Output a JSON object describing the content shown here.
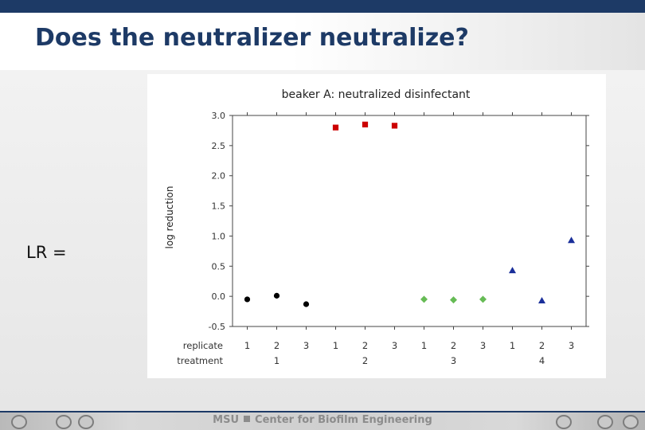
{
  "slide": {
    "title": "Does the neutralizer neutralize?",
    "lr_label": "LR ="
  },
  "footer": {
    "org": "MSU",
    "center": "Center for Biofilm Engineering"
  },
  "colors": {
    "header_bar": "#1d3a66",
    "title_text": "#1d3a66",
    "series_1": "#000000",
    "series_2": "#cc0000",
    "series_3": "#66bb55",
    "series_4": "#1a2f9a"
  },
  "chart_data": {
    "type": "scatter",
    "title": "beaker A: neutralized disinfectant",
    "ylabel": "log reduction",
    "xlabel_rows": [
      "replicate",
      "treatment"
    ],
    "ylim": [
      -0.5,
      3.0
    ],
    "yticks": [
      "-0.5",
      "0.0",
      "0.5",
      "1.0",
      "1.5",
      "2.0",
      "2.5",
      "3.0"
    ],
    "grid": false,
    "groups": [
      {
        "treatment": "1",
        "marker": "circle",
        "color": "#000000",
        "replicates": [
          "1",
          "2",
          "3"
        ],
        "values": [
          -0.05,
          0.01,
          -0.13
        ]
      },
      {
        "treatment": "2",
        "marker": "square",
        "color": "#cc0000",
        "replicates": [
          "1",
          "2",
          "3"
        ],
        "values": [
          2.8,
          2.85,
          2.83
        ]
      },
      {
        "treatment": "3",
        "marker": "diamond",
        "color": "#66bb55",
        "replicates": [
          "1",
          "2",
          "3"
        ],
        "values": [
          -0.05,
          -0.06,
          -0.05
        ]
      },
      {
        "treatment": "4",
        "marker": "triangle",
        "color": "#1a2f9a",
        "replicates": [
          "1",
          "2",
          "3"
        ],
        "values": [
          0.43,
          -0.07,
          0.93
        ]
      }
    ]
  }
}
